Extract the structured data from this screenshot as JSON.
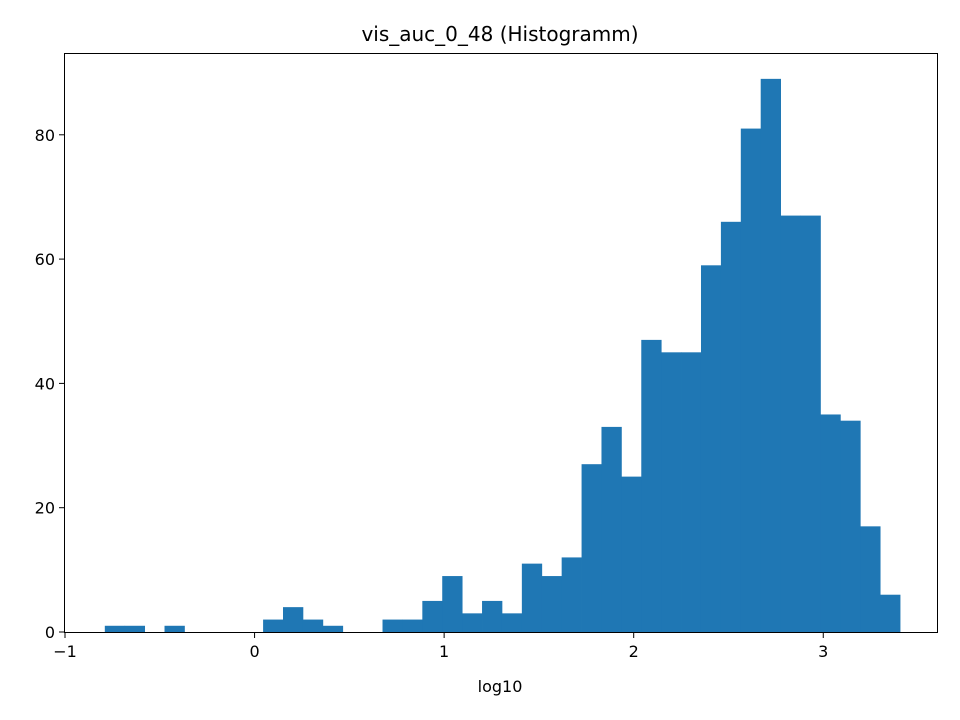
{
  "chart_data": {
    "type": "bar",
    "title": "vis_auc_0_48 (Histogramm)",
    "xlabel": "log10",
    "ylabel": "",
    "xlim": [
      -1,
      3.6
    ],
    "ylim": [
      0,
      93
    ],
    "xticks": [
      -1,
      0,
      1,
      2,
      3
    ],
    "yticks": [
      0,
      20,
      40,
      60,
      80
    ],
    "grid": false,
    "bar_color": "#1f77b4",
    "bins": [
      {
        "x0": -0.79,
        "x1": -0.685,
        "count": 1
      },
      {
        "x0": -0.685,
        "x1": -0.58,
        "count": 1
      },
      {
        "x0": -0.475,
        "x1": -0.37,
        "count": 1
      },
      {
        "x0": 0.045,
        "x1": 0.15,
        "count": 2
      },
      {
        "x0": 0.15,
        "x1": 0.255,
        "count": 4
      },
      {
        "x0": 0.255,
        "x1": 0.36,
        "count": 2
      },
      {
        "x0": 0.36,
        "x1": 0.465,
        "count": 1
      },
      {
        "x0": 0.675,
        "x1": 0.78,
        "count": 2
      },
      {
        "x0": 0.78,
        "x1": 0.885,
        "count": 2
      },
      {
        "x0": 0.885,
        "x1": 0.99,
        "count": 5
      },
      {
        "x0": 0.99,
        "x1": 1.095,
        "count": 9
      },
      {
        "x0": 1.095,
        "x1": 1.2,
        "count": 3
      },
      {
        "x0": 1.2,
        "x1": 1.305,
        "count": 5
      },
      {
        "x0": 1.305,
        "x1": 1.41,
        "count": 3
      },
      {
        "x0": 1.41,
        "x1": 1.515,
        "count": 11
      },
      {
        "x0": 1.515,
        "x1": 1.62,
        "count": 9
      },
      {
        "x0": 1.62,
        "x1": 1.725,
        "count": 12
      },
      {
        "x0": 1.725,
        "x1": 1.83,
        "count": 27
      },
      {
        "x0": 1.83,
        "x1": 1.935,
        "count": 33
      },
      {
        "x0": 1.935,
        "x1": 2.04,
        "count": 25
      },
      {
        "x0": 2.04,
        "x1": 2.145,
        "count": 47
      },
      {
        "x0": 2.145,
        "x1": 2.25,
        "count": 45
      },
      {
        "x0": 2.25,
        "x1": 2.355,
        "count": 45
      },
      {
        "x0": 2.355,
        "x1": 2.46,
        "count": 59
      },
      {
        "x0": 2.46,
        "x1": 2.565,
        "count": 66
      },
      {
        "x0": 2.565,
        "x1": 2.67,
        "count": 81
      },
      {
        "x0": 2.67,
        "x1": 2.775,
        "count": 89
      },
      {
        "x0": 2.775,
        "x1": 2.88,
        "count": 67
      },
      {
        "x0": 2.88,
        "x1": 2.985,
        "count": 67
      },
      {
        "x0": 2.985,
        "x1": 3.09,
        "count": 35
      },
      {
        "x0": 3.09,
        "x1": 3.195,
        "count": 34
      },
      {
        "x0": 3.195,
        "x1": 3.3,
        "count": 17
      },
      {
        "x0": 3.3,
        "x1": 3.405,
        "count": 6
      }
    ]
  }
}
